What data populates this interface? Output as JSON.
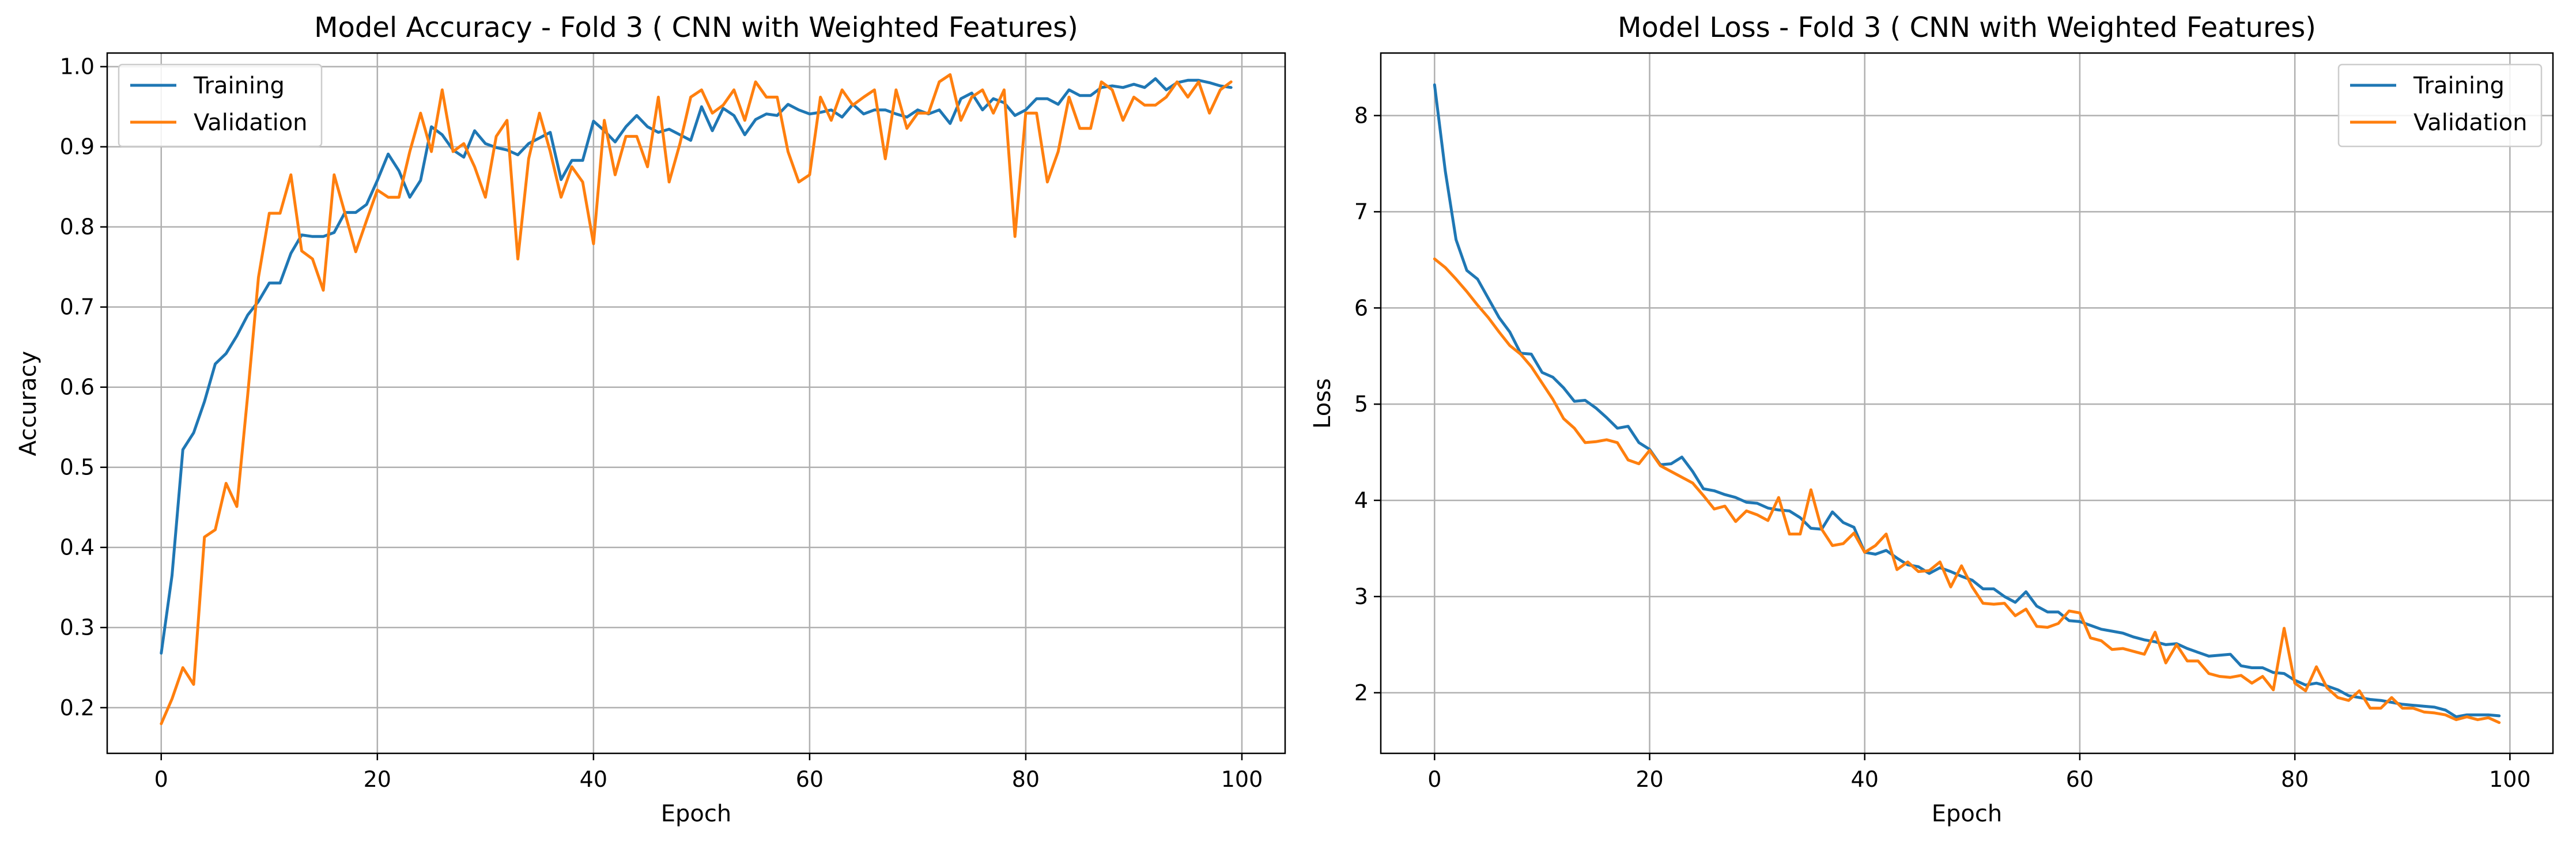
{
  "chart_data": [
    {
      "type": "line",
      "title": "Model Accuracy - Fold 3 ( CNN with Weighted Features)",
      "xlabel": "Epoch",
      "ylabel": "Accuracy",
      "xlim": [
        -5,
        104
      ],
      "ylim": [
        0.143,
        1.017
      ],
      "xticks": [
        0,
        20,
        40,
        60,
        80,
        100
      ],
      "yticks": [
        0.2,
        0.3,
        0.4,
        0.5,
        0.6,
        0.7,
        0.8,
        0.9,
        1.0
      ],
      "ytick_labels": [
        "0.2",
        "0.3",
        "0.4",
        "0.5",
        "0.6",
        "0.7",
        "0.8",
        "0.9",
        "1.0"
      ],
      "grid": true,
      "legend": "upper-left",
      "series": [
        {
          "name": "Training",
          "color": "#1f77b4",
          "values": [
            0.268,
            0.365,
            0.522,
            0.543,
            0.582,
            0.629,
            0.642,
            0.664,
            0.69,
            0.707,
            0.73,
            0.73,
            0.767,
            0.79,
            0.788,
            0.788,
            0.793,
            0.818,
            0.818,
            0.828,
            0.858,
            0.891,
            0.87,
            0.837,
            0.858,
            0.925,
            0.915,
            0.896,
            0.887,
            0.92,
            0.904,
            0.899,
            0.896,
            0.89,
            0.904,
            0.911,
            0.918,
            0.859,
            0.883,
            0.883,
            0.932,
            0.92,
            0.906,
            0.925,
            0.939,
            0.925,
            0.918,
            0.922,
            0.915,
            0.908,
            0.95,
            0.92,
            0.948,
            0.939,
            0.915,
            0.934,
            0.941,
            0.939,
            0.953,
            0.946,
            0.941,
            0.943,
            0.946,
            0.937,
            0.953,
            0.941,
            0.946,
            0.946,
            0.941,
            0.937,
            0.946,
            0.941,
            0.946,
            0.929,
            0.96,
            0.967,
            0.946,
            0.96,
            0.955,
            0.939,
            0.946,
            0.96,
            0.96,
            0.953,
            0.971,
            0.964,
            0.964,
            0.974,
            0.976,
            0.974,
            0.978,
            0.974,
            0.985,
            0.971,
            0.98,
            0.983,
            0.983,
            0.98,
            0.976,
            0.974
          ]
        },
        {
          "name": "Validation",
          "color": "#ff7f0e",
          "values": [
            0.18,
            0.211,
            0.25,
            0.229,
            0.413,
            0.422,
            0.48,
            0.451,
            0.59,
            0.737,
            0.817,
            0.817,
            0.865,
            0.77,
            0.76,
            0.721,
            0.865,
            0.817,
            0.769,
            0.808,
            0.846,
            0.837,
            0.837,
            0.894,
            0.942,
            0.894,
            0.971,
            0.894,
            0.904,
            0.875,
            0.837,
            0.913,
            0.933,
            0.76,
            0.885,
            0.942,
            0.894,
            0.837,
            0.875,
            0.856,
            0.779,
            0.933,
            0.865,
            0.913,
            0.913,
            0.875,
            0.962,
            0.856,
            0.904,
            0.962,
            0.971,
            0.942,
            0.952,
            0.971,
            0.933,
            0.981,
            0.962,
            0.962,
            0.894,
            0.856,
            0.865,
            0.962,
            0.933,
            0.971,
            0.952,
            0.962,
            0.971,
            0.885,
            0.971,
            0.923,
            0.942,
            0.942,
            0.981,
            0.99,
            0.933,
            0.962,
            0.971,
            0.942,
            0.971,
            0.788,
            0.942,
            0.942,
            0.856,
            0.894,
            0.962,
            0.923,
            0.923,
            0.981,
            0.971,
            0.933,
            0.962,
            0.952,
            0.952,
            0.962,
            0.981,
            0.962,
            0.981,
            0.942,
            0.971,
            0.981
          ]
        }
      ]
    },
    {
      "type": "line",
      "title": "Model Loss - Fold 3 ( CNN with Weighted Features)",
      "xlabel": "Epoch",
      "ylabel": "Loss",
      "xlim": [
        -5,
        104
      ],
      "ylim": [
        1.37,
        8.65
      ],
      "xticks": [
        0,
        20,
        40,
        60,
        80,
        100
      ],
      "yticks": [
        2,
        3,
        4,
        5,
        6,
        7,
        8
      ],
      "ytick_labels": [
        "2",
        "3",
        "4",
        "5",
        "6",
        "7",
        "8"
      ],
      "grid": true,
      "legend": "upper-right",
      "series": [
        {
          "name": "Training",
          "color": "#1f77b4",
          "values": [
            8.32,
            7.42,
            6.71,
            6.39,
            6.3,
            6.1,
            5.9,
            5.75,
            5.53,
            5.52,
            5.33,
            5.28,
            5.17,
            5.03,
            5.04,
            4.96,
            4.86,
            4.75,
            4.77,
            4.6,
            4.53,
            4.37,
            4.38,
            4.45,
            4.3,
            4.12,
            4.1,
            4.06,
            4.03,
            3.98,
            3.97,
            3.92,
            3.9,
            3.89,
            3.82,
            3.71,
            3.7,
            3.88,
            3.77,
            3.72,
            3.46,
            3.44,
            3.48,
            3.4,
            3.33,
            3.31,
            3.24,
            3.3,
            3.26,
            3.21,
            3.17,
            3.08,
            3.08,
            3.0,
            2.94,
            3.05,
            2.9,
            2.84,
            2.84,
            2.75,
            2.74,
            2.7,
            2.66,
            2.64,
            2.62,
            2.58,
            2.55,
            2.53,
            2.5,
            2.51,
            2.46,
            2.42,
            2.38,
            2.39,
            2.4,
            2.28,
            2.26,
            2.26,
            2.21,
            2.2,
            2.13,
            2.08,
            2.1,
            2.07,
            2.03,
            1.97,
            1.95,
            1.93,
            1.92,
            1.9,
            1.88,
            1.87,
            1.86,
            1.85,
            1.82,
            1.75,
            1.77,
            1.77,
            1.77,
            1.76
          ]
        },
        {
          "name": "Validation",
          "color": "#ff7f0e",
          "values": [
            6.51,
            6.42,
            6.3,
            6.17,
            6.03,
            5.9,
            5.75,
            5.61,
            5.52,
            5.39,
            5.22,
            5.05,
            4.85,
            4.75,
            4.6,
            4.61,
            4.63,
            4.6,
            4.42,
            4.38,
            4.52,
            4.36,
            4.3,
            4.24,
            4.18,
            4.05,
            3.91,
            3.94,
            3.78,
            3.89,
            3.85,
            3.79,
            4.03,
            3.65,
            3.65,
            4.11,
            3.7,
            3.53,
            3.55,
            3.66,
            3.46,
            3.53,
            3.65,
            3.28,
            3.36,
            3.26,
            3.27,
            3.36,
            3.1,
            3.32,
            3.1,
            2.93,
            2.92,
            2.93,
            2.8,
            2.87,
            2.69,
            2.68,
            2.72,
            2.85,
            2.83,
            2.57,
            2.54,
            2.45,
            2.46,
            2.43,
            2.4,
            2.63,
            2.31,
            2.5,
            2.33,
            2.33,
            2.2,
            2.17,
            2.16,
            2.18,
            2.1,
            2.17,
            2.03,
            2.67,
            2.1,
            2.02,
            2.27,
            2.05,
            1.95,
            1.92,
            2.02,
            1.84,
            1.84,
            1.95,
            1.84,
            1.84,
            1.8,
            1.79,
            1.77,
            1.72,
            1.75,
            1.72,
            1.74,
            1.69
          ]
        }
      ]
    }
  ]
}
